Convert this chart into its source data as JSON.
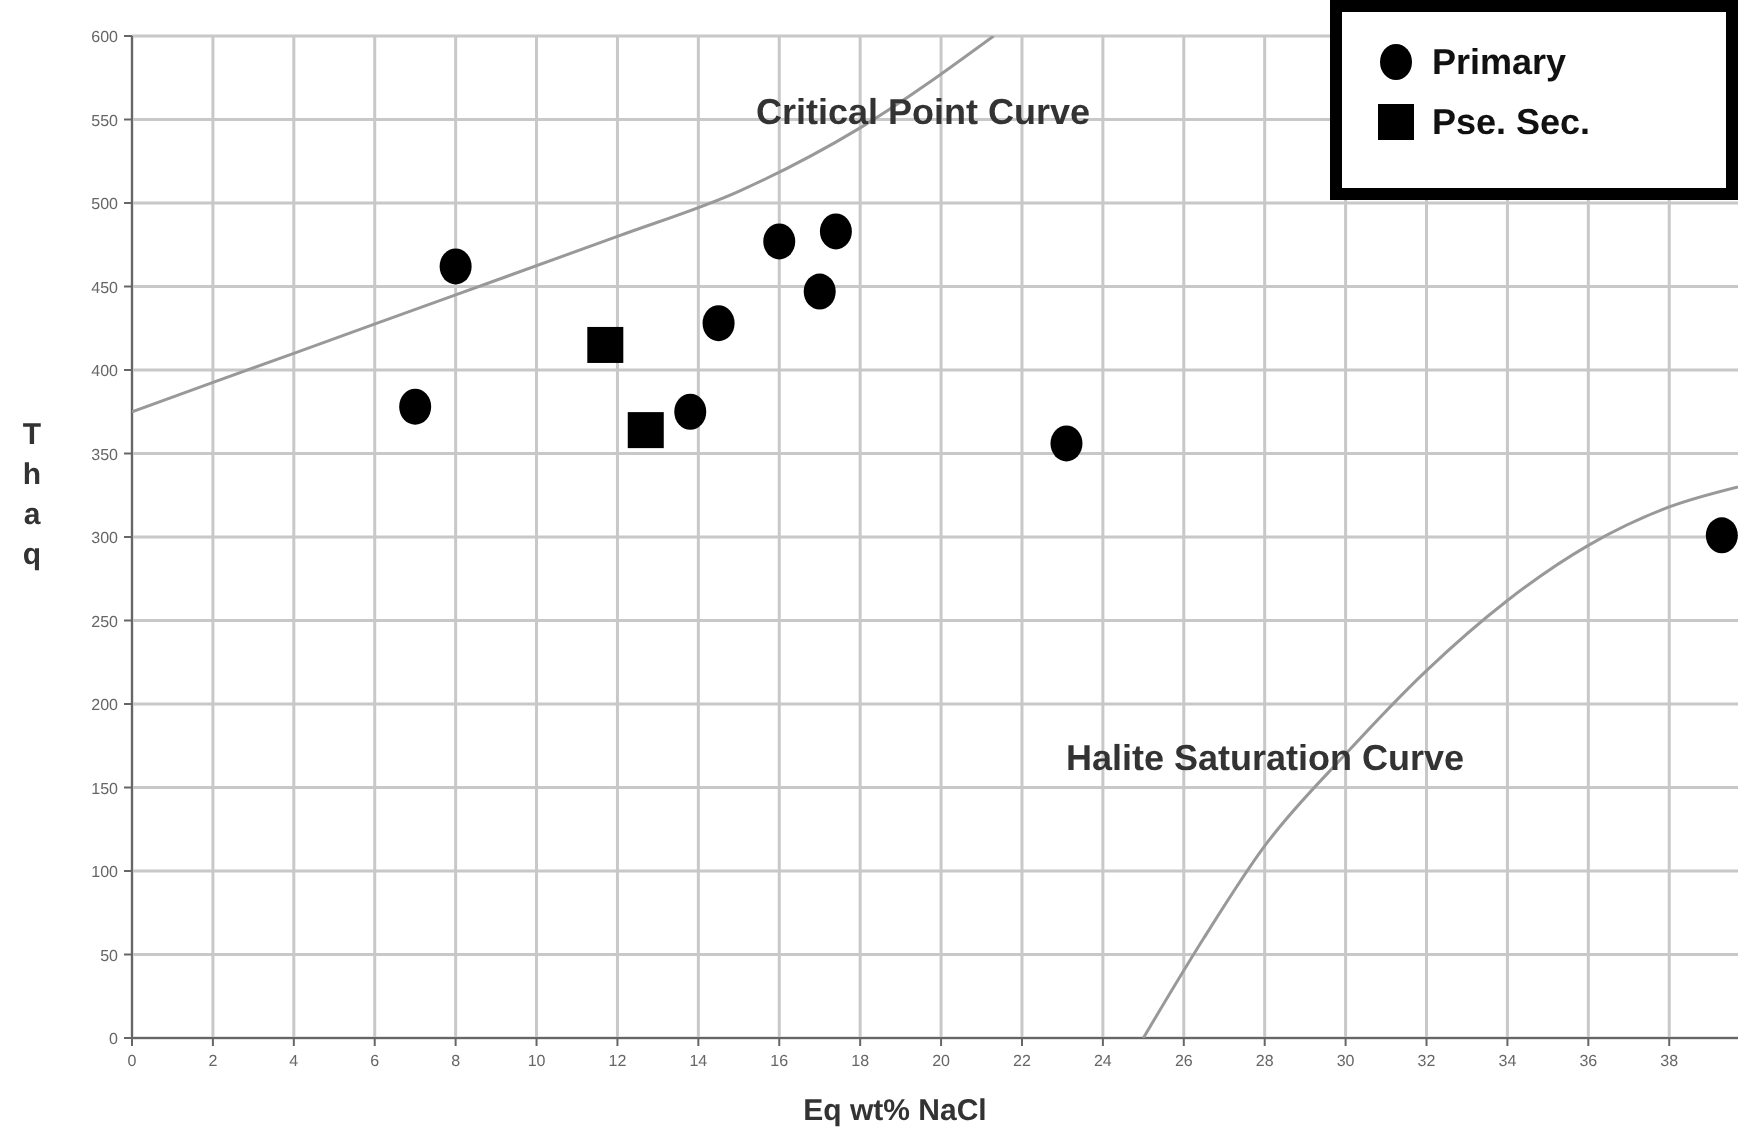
{
  "chart_data": {
    "type": "scatter",
    "xlabel": "Eq wt% NaCl",
    "ylabel": "Thaq",
    "xlim": [
      0,
      39.7
    ],
    "xticks": [
      0,
      2,
      4,
      6,
      8,
      10,
      12,
      14,
      16,
      18,
      20,
      22,
      24,
      26,
      28,
      30,
      32,
      34,
      36,
      38
    ],
    "ylim": [
      0,
      600
    ],
    "yticks": [
      0,
      50,
      100,
      150,
      200,
      250,
      300,
      350,
      400,
      450,
      500,
      550,
      600
    ],
    "grid": true,
    "legend": "top right",
    "series": [
      {
        "name": "Primary",
        "marker": "circle",
        "color": "#000000",
        "x": [
          7,
          8,
          13.8,
          14.5,
          16,
          17,
          17.4,
          23.1,
          39.3
        ],
        "values": [
          378,
          462,
          375,
          428,
          477,
          447,
          483,
          356,
          301
        ]
      },
      {
        "name": "Pse. Sec.",
        "marker": "square",
        "color": "#000000",
        "x": [
          11.7,
          12.7
        ],
        "values": [
          415,
          364
        ]
      },
      {
        "type": "line",
        "color": "#999999",
        "x": [
          0,
          4,
          8,
          12,
          15,
          18,
          21.3
        ],
        "values": [
          375,
          410,
          445,
          480,
          507,
          545,
          600
        ]
      },
      {
        "type": "line",
        "color": "#999999",
        "x": [
          25,
          26.5,
          28,
          30,
          32,
          34,
          36,
          38,
          39.7
        ],
        "values": [
          0,
          60,
          115,
          170,
          220,
          262,
          295,
          318,
          330
        ]
      }
    ],
    "annotations": [
      "Critical Point Curve",
      "Halite Saturation Curve"
    ]
  }
}
